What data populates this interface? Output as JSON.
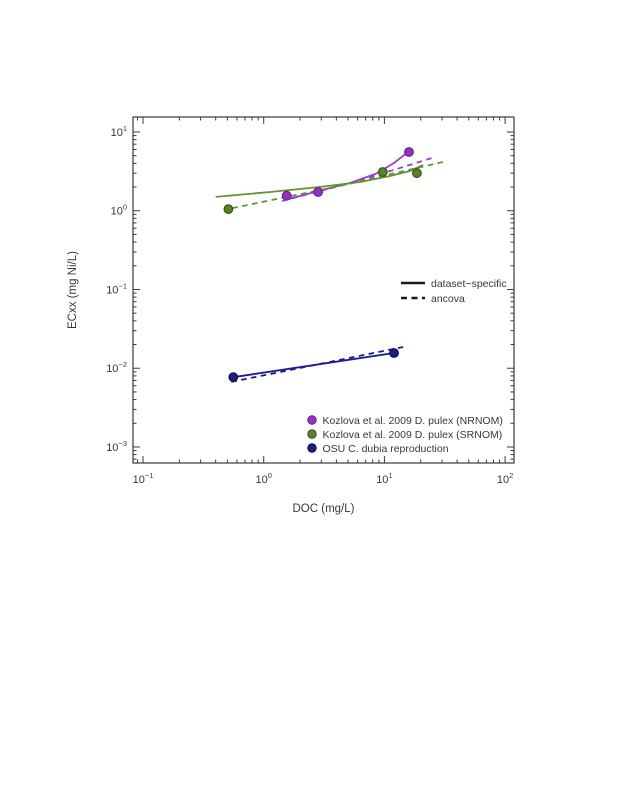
{
  "page": {
    "background": "#ffffff"
  },
  "chart_data": {
    "type": "scatter",
    "title": "",
    "xlabel": "DOC (mg/L)",
    "ylabel": "ECxx (mg Ni/L)",
    "xscale": "log",
    "yscale": "log",
    "xlim": [
      0.0826,
      118.5
    ],
    "ylim": [
      0.000626,
      15.5
    ],
    "x_major_ticks": [
      0.1,
      1,
      10,
      100
    ],
    "y_major_ticks": [
      10,
      1,
      0.1,
      0.01,
      0.001
    ],
    "grid": false,
    "axis_color": "#3a3a3a",
    "text_color": "#383838",
    "series": [
      {
        "name": "Kozlova et al. 2009 D. pulex (NRNOM)",
        "marker_color": "#9232c8",
        "marker_edge": "#671d94",
        "line_color": "#9b3dd4",
        "points": [
          [
            1.55,
            1.55
          ],
          [
            2.82,
            1.73
          ],
          [
            16.0,
            5.57
          ]
        ],
        "fit_dataset_specific": [
          [
            1.5,
            1.37
          ],
          [
            2.82,
            1.78
          ],
          [
            5.2,
            2.25
          ],
          [
            8.4,
            2.93
          ],
          [
            12.0,
            4.04
          ],
          [
            15.7,
            5.57
          ]
        ],
        "fit_ancova": [
          [
            1.42,
            1.33
          ],
          [
            5.7,
            2.32
          ],
          [
            24.8,
            4.67
          ]
        ]
      },
      {
        "name": "Kozlova et al. 2009 D. pulex (SRNOM)",
        "marker_color": "#5a8228",
        "marker_edge": "#3a5413",
        "line_color": "#5f9632",
        "points": [
          [
            0.51,
            1.05
          ],
          [
            9.7,
            3.1
          ],
          [
            18.6,
            3.0
          ]
        ],
        "fit_dataset_specific": [
          [
            0.4,
            1.5
          ],
          [
            1.13,
            1.73
          ],
          [
            2.9,
            2.0
          ],
          [
            6.3,
            2.32
          ],
          [
            11.1,
            2.76
          ],
          [
            16.3,
            3.2
          ],
          [
            20.9,
            3.81
          ]
        ],
        "fit_ancova": [
          [
            0.55,
            1.08
          ],
          [
            3.9,
            2.0
          ],
          [
            30.6,
            4.16
          ]
        ]
      },
      {
        "name": "OSU C. dubia reproduction",
        "marker_color": "#1d1d87",
        "marker_edge": "#0e0e4e",
        "line_color": "#1d1d8f",
        "points": [
          [
            0.56,
            0.0077
          ],
          [
            12.0,
            0.0156
          ]
        ],
        "fit_dataset_specific": [
          [
            0.56,
            0.0077
          ],
          [
            12.0,
            0.0156
          ]
        ],
        "fit_ancova": [
          [
            0.54,
            0.0067
          ],
          [
            14.3,
            0.0186
          ]
        ]
      }
    ],
    "line_legend": {
      "position": "inside-right-middle",
      "line_color": "#1a1a1a",
      "items": [
        {
          "style": "solid",
          "label": "dataset−specific"
        },
        {
          "style": "dashed",
          "label": "ancova"
        }
      ]
    },
    "series_legend": {
      "position": "inside-bottom-right"
    }
  }
}
